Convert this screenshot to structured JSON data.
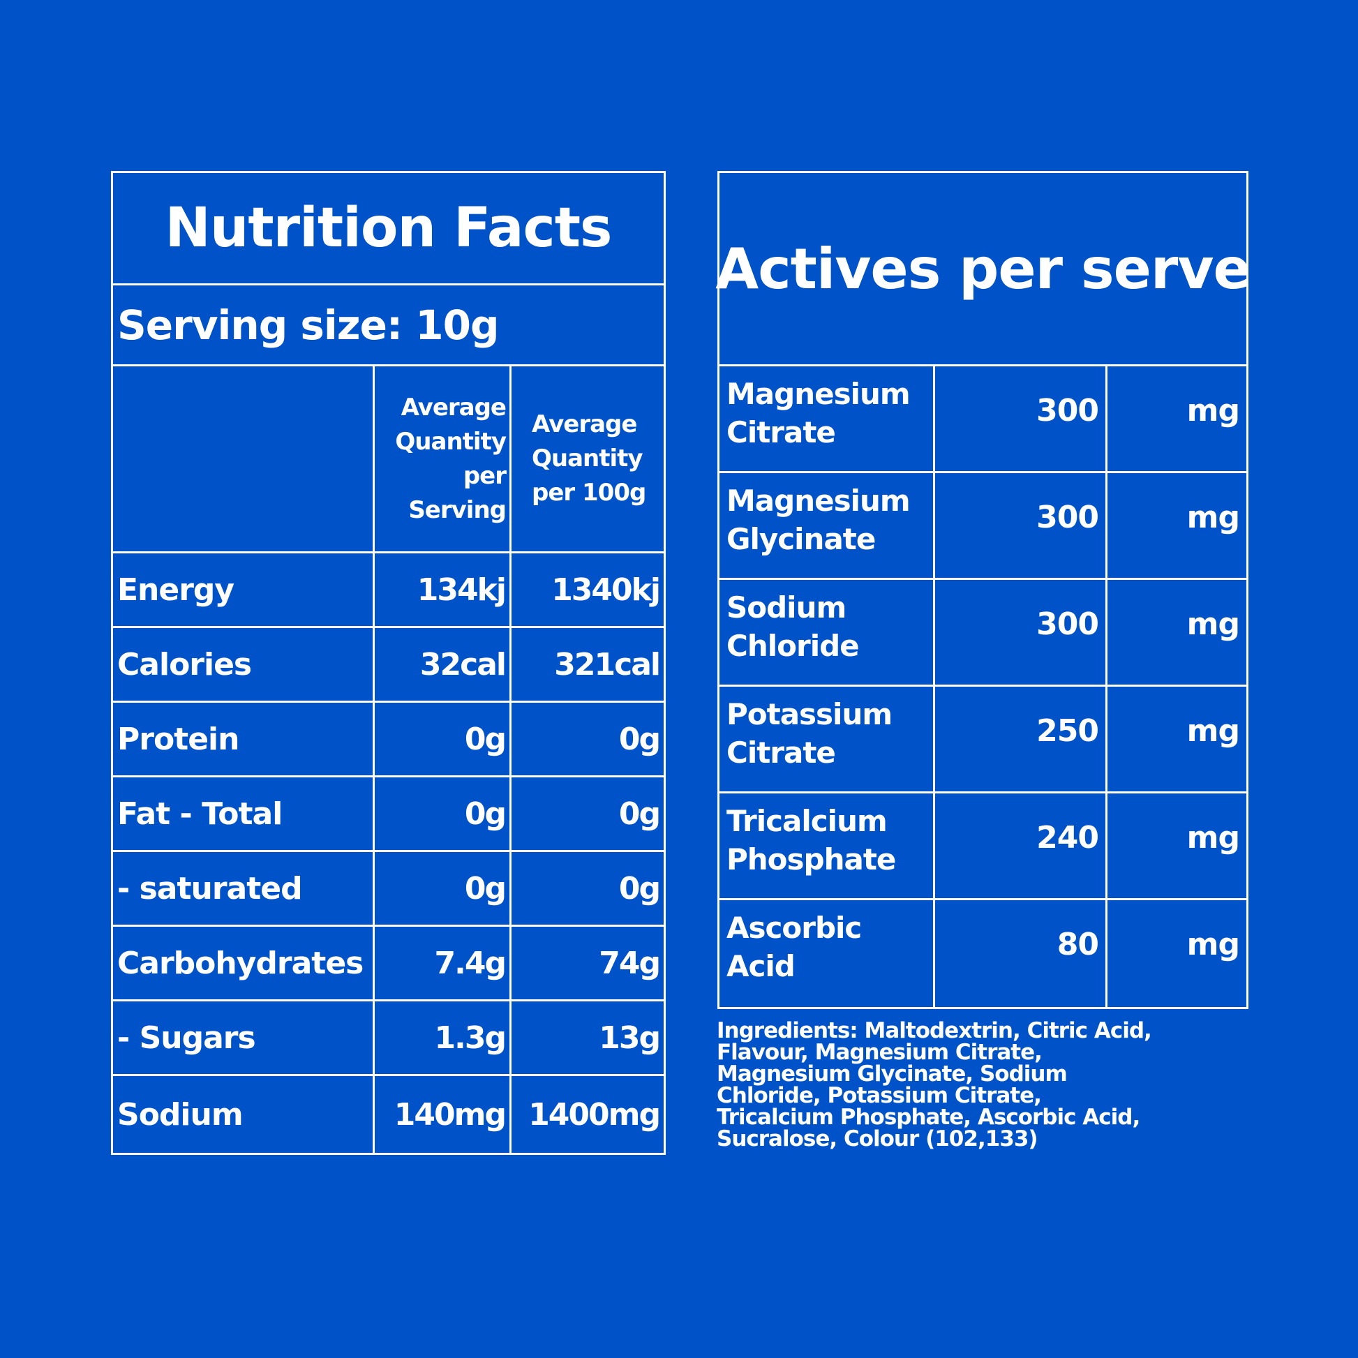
{
  "nutrition": {
    "title": "Nutrition Facts",
    "serving_size": "Serving size: 10g",
    "col_serving": [
      "Average",
      "Quantity",
      "per",
      "Serving"
    ],
    "col_100g": [
      "Average",
      "Quantity",
      "per 100g"
    ],
    "rows": [
      {
        "label": "Energy",
        "serving": "134kj",
        "per100": "1340kj"
      },
      {
        "label": "Calories",
        "serving": "32cal",
        "per100": "321cal"
      },
      {
        "label": "Protein",
        "serving": "0g",
        "per100": "0g"
      },
      {
        "label": "Fat - Total",
        "serving": "0g",
        "per100": "0g"
      },
      {
        "label": "- saturated",
        "serving": "0g",
        "per100": "0g"
      },
      {
        "label": "Carbohydrates",
        "serving": "7.4g",
        "per100": "74g"
      },
      {
        "label": "- Sugars",
        "serving": "1.3g",
        "per100": "13g"
      },
      {
        "label": "Sodium",
        "serving": "140mg",
        "per100": "1400mg"
      }
    ]
  },
  "actives": {
    "title": "Actives per serve",
    "rows": [
      {
        "name": "Magnesium Citrate",
        "amount": "300",
        "unit": "mg"
      },
      {
        "name": "Magnesium Glycinate",
        "amount": "300",
        "unit": "mg"
      },
      {
        "name": "Sodium Chloride",
        "amount": "300",
        "unit": "mg"
      },
      {
        "name": "Potassium Citrate",
        "amount": "250",
        "unit": "mg"
      },
      {
        "name": "Tricalcium Phosphate",
        "amount": "240",
        "unit": "mg"
      },
      {
        "name": "Ascorbic Acid",
        "amount": "80",
        "unit": "mg"
      }
    ]
  },
  "ingredients": "Ingredients: Maltodextrin, Citric Acid, Flavour, Magnesium Citrate, Magnesium Glycinate, Sodium Chloride, Potassium Citrate, Tricalcium Phosphate, Ascorbic Acid, Sucralose, Colour (102,133)",
  "colors": {
    "background": "#0052c8",
    "foreground": "#ffffff"
  }
}
